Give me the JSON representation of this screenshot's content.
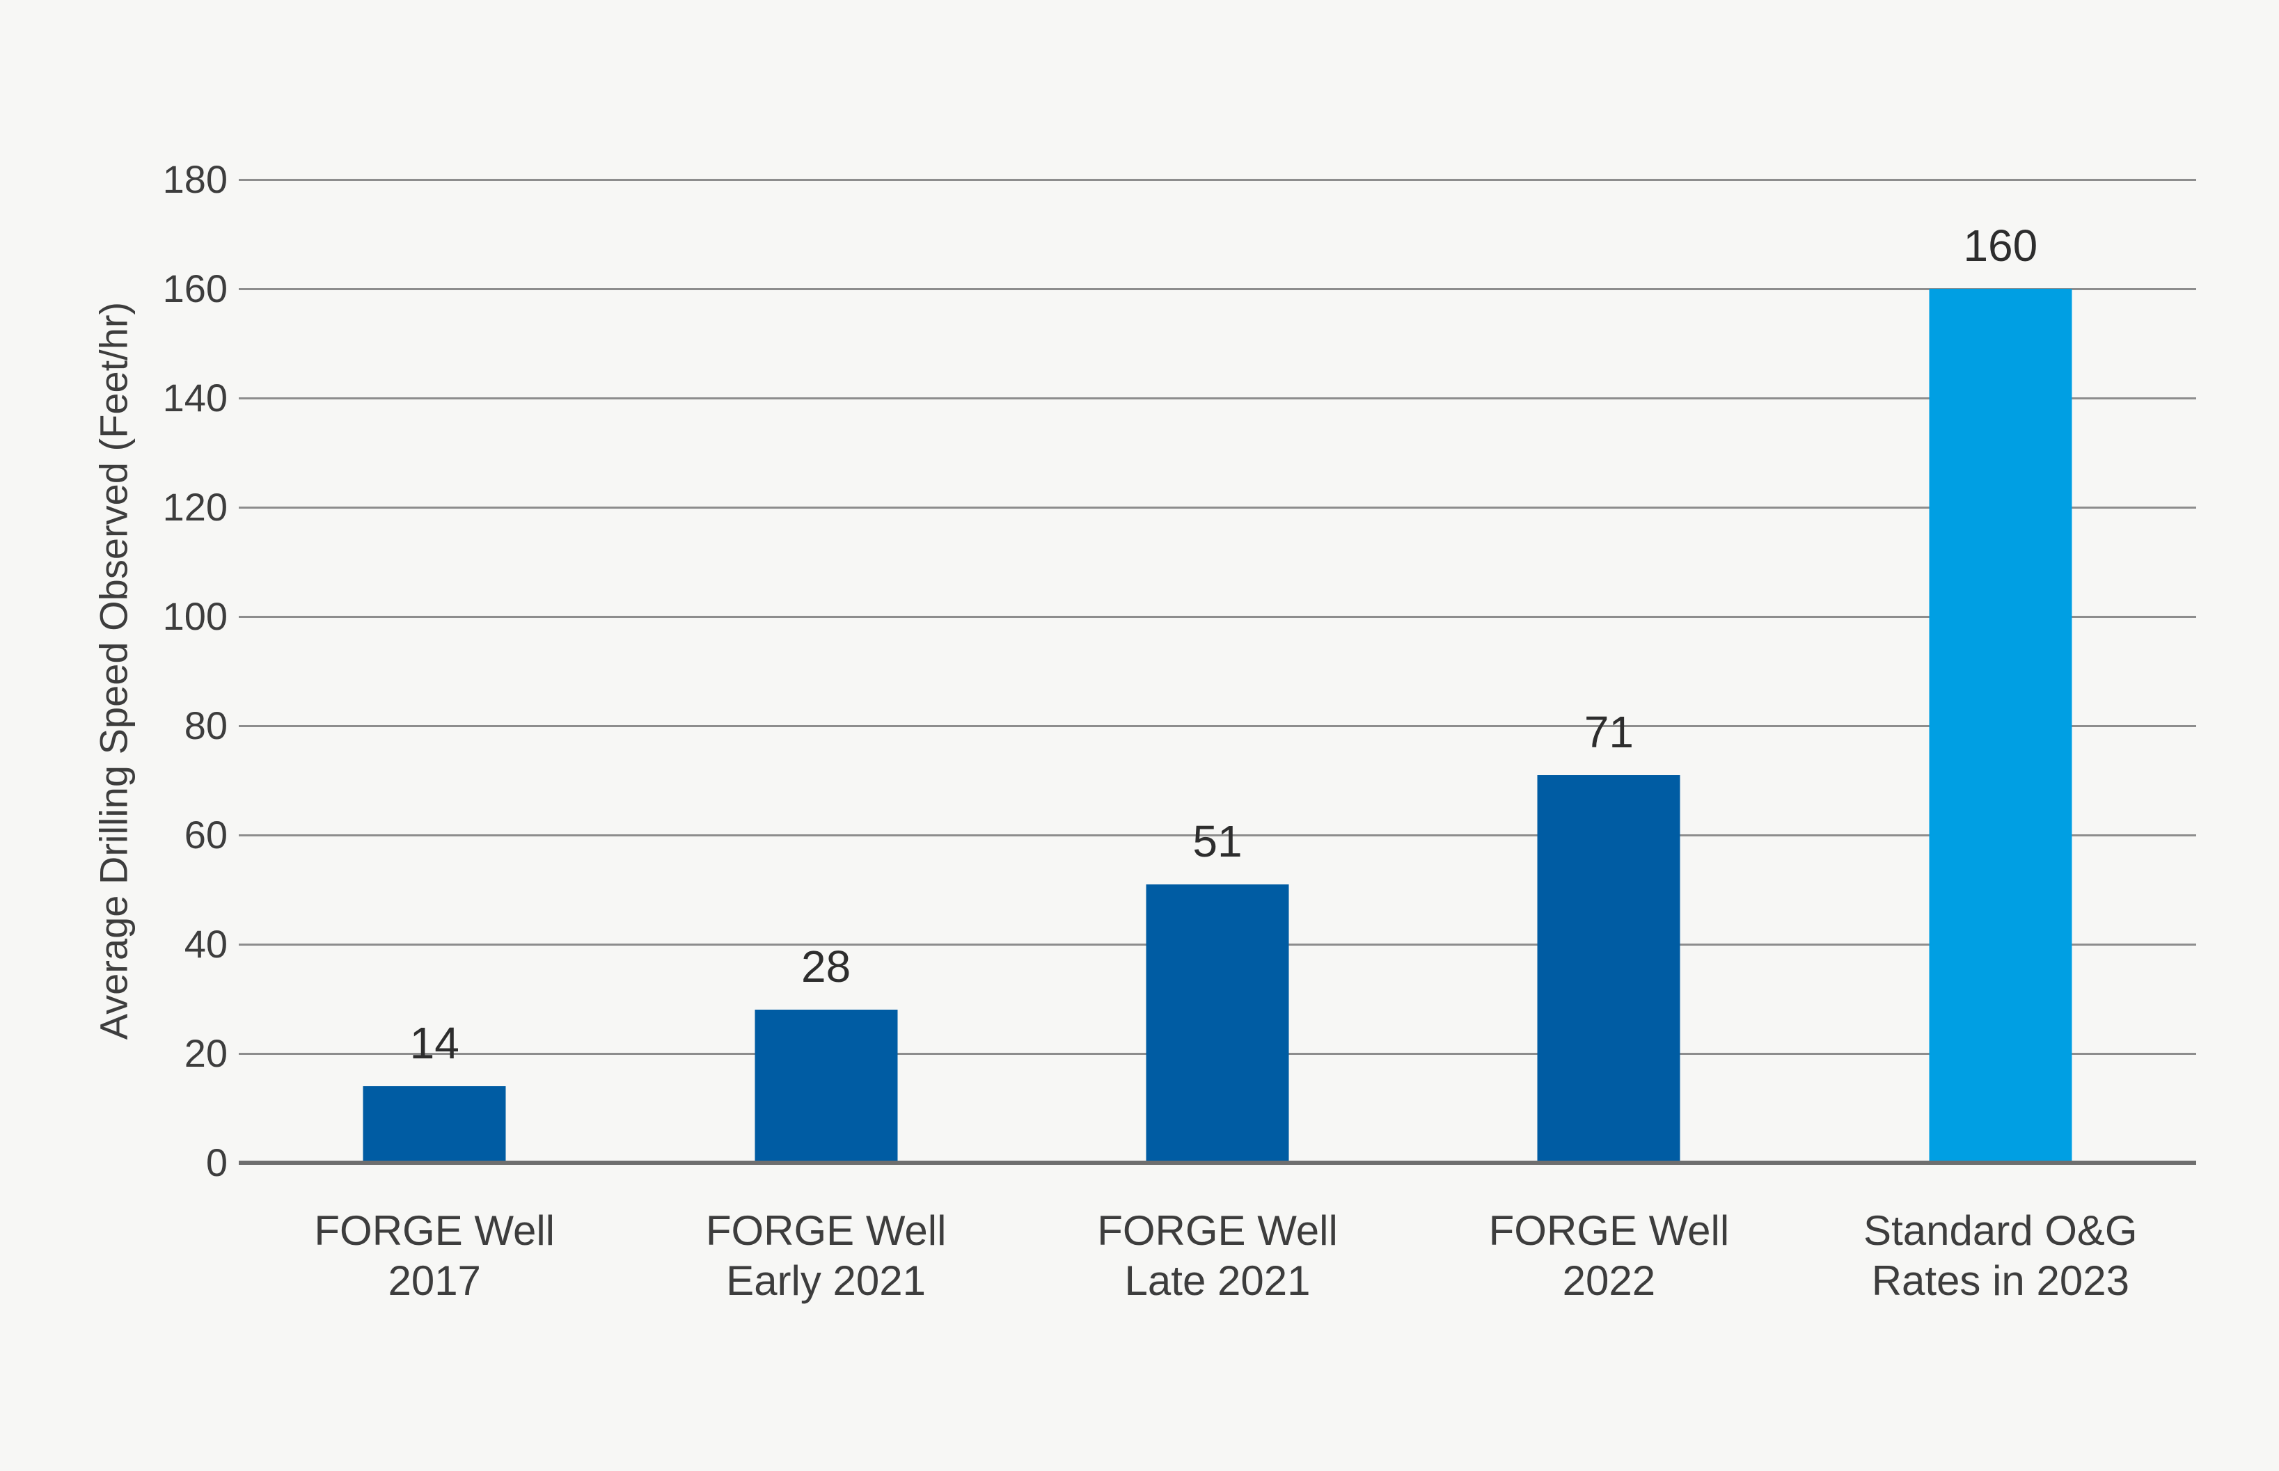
{
  "colors": {
    "background": "#f7f7f5",
    "bar_primary": "#005ca3",
    "bar_highlight": "#009fe3",
    "gridline": "#8d8d8d",
    "axis_line": "#6e6e6e",
    "axis_text": "#3d3d3d",
    "value_label_text": "#2d2d2d"
  },
  "chart_data": {
    "type": "bar",
    "categories": [
      "FORGE Well\n2017",
      "FORGE Well\nEarly 2021",
      "FORGE Well\nLate 2021",
      "FORGE Well\n2022",
      "Standard O&G\nRates in 2023"
    ],
    "values": [
      14,
      28,
      51,
      71,
      160
    ],
    "value_labels": [
      "14",
      "28",
      "51",
      "71",
      "160"
    ],
    "bar_colors": [
      "#005ca3",
      "#005ca3",
      "#005ca3",
      "#005ca3",
      "#009fe3"
    ],
    "title": "",
    "xlabel": "",
    "ylabel": "Average Drilling Speed Observed (Feet/hr)",
    "ylim": [
      0,
      180
    ],
    "yticks": [
      0,
      20,
      40,
      60,
      80,
      100,
      120,
      140,
      160,
      180
    ],
    "grid": "horizontal-only",
    "legend": "none"
  }
}
